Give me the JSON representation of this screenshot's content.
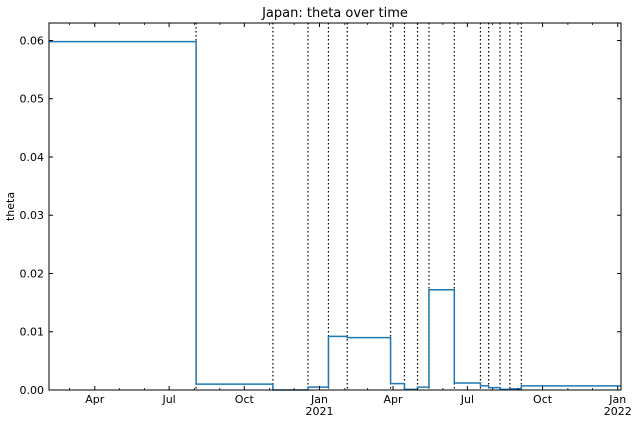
{
  "chart_data": {
    "type": "line",
    "title": "Japan: theta over time",
    "xlabel": "",
    "ylabel": "theta",
    "x_range": [
      "2020-02-05",
      "2022-01-05"
    ],
    "ylim": [
      0,
      0.063
    ],
    "y_ticks": [
      0.0,
      0.01,
      0.02,
      0.03,
      0.04,
      0.05,
      0.06
    ],
    "y_tick_labels": [
      "0.00",
      "0.01",
      "0.02",
      "0.03",
      "0.04",
      "0.05",
      "0.06"
    ],
    "x_ticks": [
      {
        "date": "2020-04-01",
        "label": "Apr",
        "sublabel": ""
      },
      {
        "date": "2020-07-01",
        "label": "Jul",
        "sublabel": ""
      },
      {
        "date": "2020-10-01",
        "label": "Oct",
        "sublabel": ""
      },
      {
        "date": "2021-01-01",
        "label": "Jan",
        "sublabel": "2021"
      },
      {
        "date": "2021-04-01",
        "label": "Apr",
        "sublabel": ""
      },
      {
        "date": "2021-07-01",
        "label": "Jul",
        "sublabel": ""
      },
      {
        "date": "2021-10-01",
        "label": "Oct",
        "sublabel": ""
      },
      {
        "date": "2022-01-01",
        "label": "Jan",
        "sublabel": "2022"
      }
    ],
    "grid": false,
    "line_color": "#1f77b4",
    "breakpoints": [
      "2020-08-03",
      "2020-11-05",
      "2020-12-18",
      "2021-01-12",
      "2021-02-04",
      "2021-03-29",
      "2021-04-15",
      "2021-05-01",
      "2021-05-15",
      "2021-06-15",
      "2021-07-17",
      "2021-07-27",
      "2021-08-10",
      "2021-08-22",
      "2021-09-05"
    ],
    "series": [
      {
        "values": [
          {
            "x": "2020-02-05",
            "y": 0.0598
          },
          {
            "x": "2020-08-03",
            "y": 0.0598
          },
          {
            "x": "2020-08-03",
            "y": 0.001
          },
          {
            "x": "2020-11-05",
            "y": 0.001
          },
          {
            "x": "2020-11-05",
            "y": 0.0
          },
          {
            "x": "2020-12-18",
            "y": 0.0
          },
          {
            "x": "2020-12-18",
            "y": 0.0005
          },
          {
            "x": "2021-01-12",
            "y": 0.0005
          },
          {
            "x": "2021-01-12",
            "y": 0.0092
          },
          {
            "x": "2021-02-04",
            "y": 0.0092
          },
          {
            "x": "2021-02-04",
            "y": 0.009
          },
          {
            "x": "2021-03-29",
            "y": 0.009
          },
          {
            "x": "2021-03-29",
            "y": 0.0011
          },
          {
            "x": "2021-04-15",
            "y": 0.0011
          },
          {
            "x": "2021-04-15",
            "y": 0.0001
          },
          {
            "x": "2021-05-01",
            "y": 0.0001
          },
          {
            "x": "2021-05-01",
            "y": 0.0005
          },
          {
            "x": "2021-05-15",
            "y": 0.0005
          },
          {
            "x": "2021-05-15",
            "y": 0.0172
          },
          {
            "x": "2021-06-15",
            "y": 0.0172
          },
          {
            "x": "2021-06-15",
            "y": 0.0012
          },
          {
            "x": "2021-07-17",
            "y": 0.0012
          },
          {
            "x": "2021-07-17",
            "y": 0.0007
          },
          {
            "x": "2021-07-27",
            "y": 0.0007
          },
          {
            "x": "2021-07-27",
            "y": 0.0004
          },
          {
            "x": "2021-08-10",
            "y": 0.0004
          },
          {
            "x": "2021-08-10",
            "y": 0.0001
          },
          {
            "x": "2021-08-22",
            "y": 0.0001
          },
          {
            "x": "2021-08-22",
            "y": 0.0002
          },
          {
            "x": "2021-09-05",
            "y": 0.0002
          },
          {
            "x": "2021-09-05",
            "y": 0.0007
          },
          {
            "x": "2022-01-05",
            "y": 0.0007
          }
        ]
      }
    ]
  }
}
